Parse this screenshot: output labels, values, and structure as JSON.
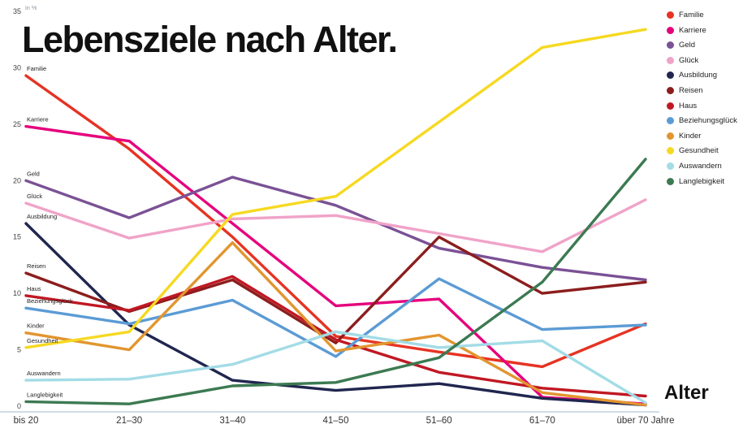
{
  "title": "Lebensziele nach Alter.",
  "y_axis_unit": "in %",
  "x_axis_label": "Alter",
  "chart_data": {
    "type": "line",
    "categories": [
      "bis 20",
      "21–30",
      "31–40",
      "41–50",
      "51–60",
      "61–70",
      "über 70 Jahre"
    ],
    "ylim": [
      0,
      35
    ],
    "yticks": [
      0,
      5,
      10,
      15,
      20,
      25,
      30,
      35
    ],
    "grid": false,
    "legend_position": "top-right",
    "series": [
      {
        "name": "Familie",
        "color": "#e63323",
        "values": [
          29.3,
          22.8,
          15.0,
          6.2,
          4.8,
          3.5,
          7.3
        ]
      },
      {
        "name": "Karriere",
        "color": "#e5007d",
        "values": [
          24.8,
          23.5,
          16.2,
          8.9,
          9.5,
          0.8,
          0.2
        ]
      },
      {
        "name": "Geld",
        "color": "#7a5195",
        "values": [
          20.0,
          16.7,
          20.3,
          17.8,
          14.0,
          12.3,
          11.2
        ]
      },
      {
        "name": "Glück",
        "color": "#f0a3c8",
        "values": [
          18.0,
          14.9,
          16.6,
          16.9,
          15.3,
          13.7,
          18.3
        ]
      },
      {
        "name": "Ausbildung",
        "color": "#20264f",
        "values": [
          16.2,
          7.2,
          2.3,
          1.4,
          2.0,
          0.7,
          0.1
        ]
      },
      {
        "name": "Reisen",
        "color": "#8c1d1d",
        "values": [
          11.8,
          8.4,
          11.2,
          5.6,
          15.0,
          10.0,
          11.0
        ]
      },
      {
        "name": "Haus",
        "color": "#c01823",
        "values": [
          9.8,
          8.5,
          11.5,
          5.9,
          3.0,
          1.6,
          0.9
        ]
      },
      {
        "name": "Beziehungsglück",
        "color": "#5b9bd5",
        "values": [
          8.7,
          7.3,
          9.4,
          4.4,
          11.3,
          6.8,
          7.2
        ]
      },
      {
        "name": "Kinder",
        "color": "#e2952f",
        "values": [
          6.5,
          5.0,
          14.5,
          4.9,
          6.3,
          1.2,
          0.1
        ]
      },
      {
        "name": "Gesundheit",
        "color": "#f6d921",
        "values": [
          5.2,
          6.6,
          17.0,
          18.6,
          25.2,
          31.8,
          33.4
        ]
      },
      {
        "name": "Auswandern",
        "color": "#a3dce6",
        "values": [
          2.3,
          2.4,
          3.7,
          6.6,
          5.2,
          5.8,
          0.3
        ]
      },
      {
        "name": "Langlebigkeit",
        "color": "#3c7a52",
        "values": [
          0.4,
          0.2,
          1.8,
          2.1,
          4.3,
          11.0,
          21.9
        ]
      }
    ]
  }
}
